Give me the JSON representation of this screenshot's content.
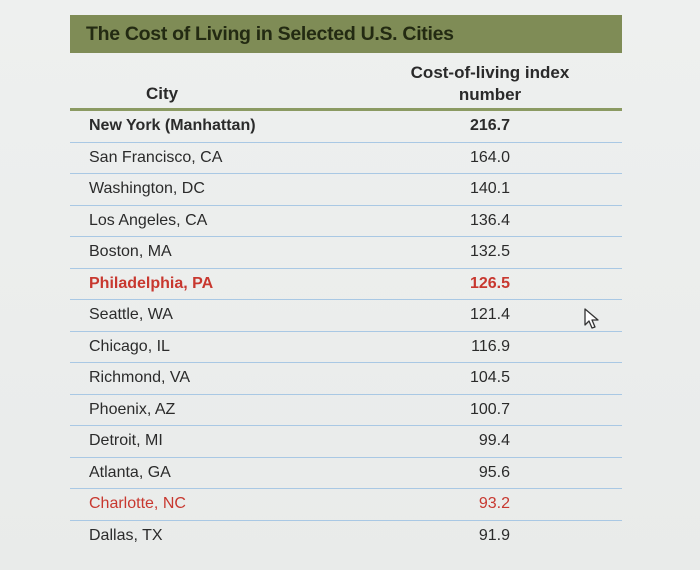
{
  "title": "The Cost of Living in Selected U.S. Cities",
  "columns": {
    "city": "City",
    "index_line1": "Cost-of-living index",
    "index_line2": "number"
  },
  "rows": [
    {
      "city": "New York (Manhattan)",
      "value": "216.7"
    },
    {
      "city": "San Francisco, CA",
      "value": "164.0"
    },
    {
      "city": "Washington, DC",
      "value": "140.1"
    },
    {
      "city": "Los Angeles, CA",
      "value": "136.4"
    },
    {
      "city": "Boston, MA",
      "value": "132.5"
    },
    {
      "city": "Philadelphia, PA",
      "value": "126.5"
    },
    {
      "city": "Seattle, WA",
      "value": "121.4"
    },
    {
      "city": "Chicago, IL",
      "value": "116.9"
    },
    {
      "city": "Richmond, VA",
      "value": "104.5"
    },
    {
      "city": "Phoenix, AZ",
      "value": "100.7"
    },
    {
      "city": "Detroit, MI",
      "value": "99.4"
    },
    {
      "city": "Atlanta, GA",
      "value": "95.6"
    },
    {
      "city": "Charlotte, NC",
      "value": "93.2"
    },
    {
      "city": "Dallas, TX",
      "value": "91.9"
    }
  ],
  "colors": {
    "title_bar": "#7f8c56",
    "highlight_text": "#c8382f",
    "row_rule": "#a9c8e4"
  },
  "icons": {
    "cursor": "mouse-pointer-icon"
  }
}
